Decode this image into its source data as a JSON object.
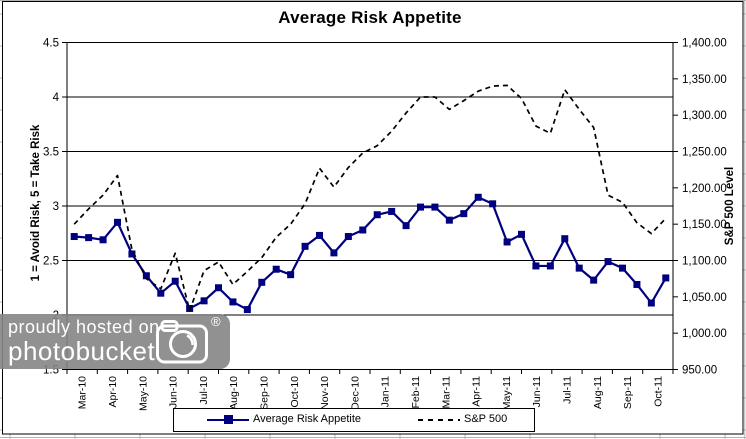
{
  "watermark": {
    "line1": "proudly hosted on",
    "line2": "photobucket",
    "reg": "®"
  },
  "chart_data": {
    "type": "line",
    "title": "Average Risk Appetite",
    "legend_position": "bottom",
    "grid": true,
    "x_labels": [
      "Mar-10",
      "Apr-10",
      "May-10",
      "Jun-10",
      "Jul-10",
      "Aug-10",
      "Sep-10",
      "Oct-10",
      "Nov-10",
      "Dec-10",
      "Jan-11",
      "Feb-11",
      "Mar-11",
      "Apr-11",
      "May-11",
      "Jun-11",
      "Jul-11",
      "Aug-11",
      "Sep-11",
      "Oct-11"
    ],
    "y_left": {
      "title": "1 = Avoid Risk, 5 = Take Risk",
      "min": 1.5,
      "max": 4.5,
      "ticks": [
        "4.5",
        "4",
        "3.5",
        "3",
        "2.5",
        "2",
        "1.5"
      ]
    },
    "y_right": {
      "title": "S&P 500 Level",
      "min": 950,
      "max": 1400,
      "ticks": [
        "1,400.00",
        "1,350.00",
        "1,300.00",
        "1,250.00",
        "1,200.00",
        "1,150.00",
        "1,100.00",
        "1,050.00",
        "1,000.00",
        "950.00"
      ]
    },
    "series": [
      {
        "name": "Average Risk Appetite",
        "axis": "left",
        "color": "#000080",
        "style": "solid-with-square-markers",
        "values": [
          2.72,
          2.71,
          2.69,
          2.85,
          2.56,
          2.36,
          2.2,
          2.31,
          2.06,
          2.13,
          2.25,
          2.12,
          2.05,
          2.3,
          2.42,
          2.37,
          2.63,
          2.73,
          2.57,
          2.72,
          2.78,
          2.92,
          2.95,
          2.82,
          2.99,
          2.99,
          2.87,
          2.93,
          3.08,
          3.02,
          2.67,
          2.74,
          2.45,
          2.45,
          2.7,
          2.43,
          2.32,
          2.49,
          2.43,
          2.28,
          2.11,
          2.34
        ]
      },
      {
        "name": "S&P 500",
        "axis": "right",
        "color": "#000000",
        "style": "dashed",
        "values": [
          1150,
          1171,
          1190,
          1217,
          1115,
          1075,
          1061,
          1110,
          1031,
          1086,
          1098,
          1067,
          1085,
          1104,
          1132,
          1150,
          1178,
          1227,
          1201,
          1228,
          1248,
          1258,
          1278,
          1303,
          1325,
          1325,
          1308,
          1320,
          1333,
          1340,
          1341,
          1323,
          1285,
          1275,
          1335,
          1308,
          1283,
          1190,
          1180,
          1152,
          1137,
          1158
        ]
      }
    ]
  }
}
